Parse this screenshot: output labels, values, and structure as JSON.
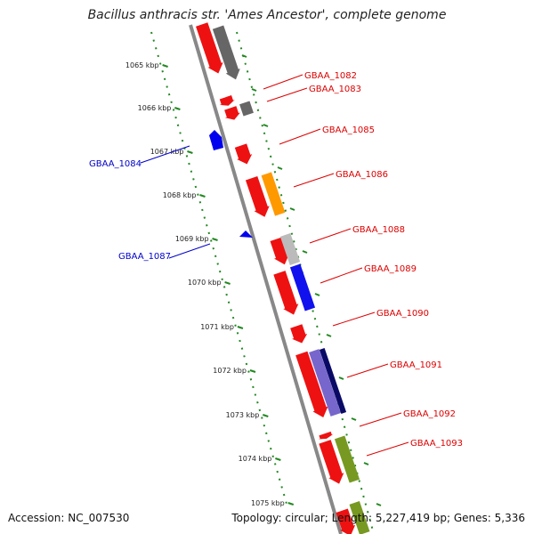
{
  "title": "Bacillus anthracis str. 'Ames Ancestor', complete genome",
  "footer": {
    "accession": "Accession: NC_007530",
    "summary": "Topology: circular; Length: 5,227,419 bp; Genes: 5,336"
  },
  "colors": {
    "forward_label": "#dd0000",
    "reverse_label": "#0000cc",
    "backbone": "#888888",
    "ticks": "#228822"
  },
  "axis": {
    "tick_labels": [
      "1065 kbp",
      "1066 kbp",
      "1067 kbp",
      "1068 kbp",
      "1069 kbp",
      "1070 kbp",
      "1071 kbp",
      "1072 kbp",
      "1073 kbp",
      "1074 kbp",
      "1075 kbp"
    ]
  },
  "genes": {
    "forward": [
      "GBAA_1082",
      "GBAA_1083",
      "GBAA_1085",
      "GBAA_1086",
      "GBAA_1088",
      "GBAA_1089",
      "GBAA_1090",
      "GBAA_1091",
      "GBAA_1092",
      "GBAA_1093"
    ],
    "reverse": [
      "GBAA_1084",
      "GBAA_1087"
    ]
  },
  "feature_colors": {
    "cds": "#ee1111",
    "cog_gray": "#666666",
    "cog_orange": "#ff9900",
    "cog_lightgray": "#bbbbbb",
    "cog_blue": "#1111ee",
    "cog_purple": "#7766cc",
    "cog_navy": "#0a0a66",
    "cog_olive": "#779922",
    "reverse_cds": "#0000ee"
  }
}
